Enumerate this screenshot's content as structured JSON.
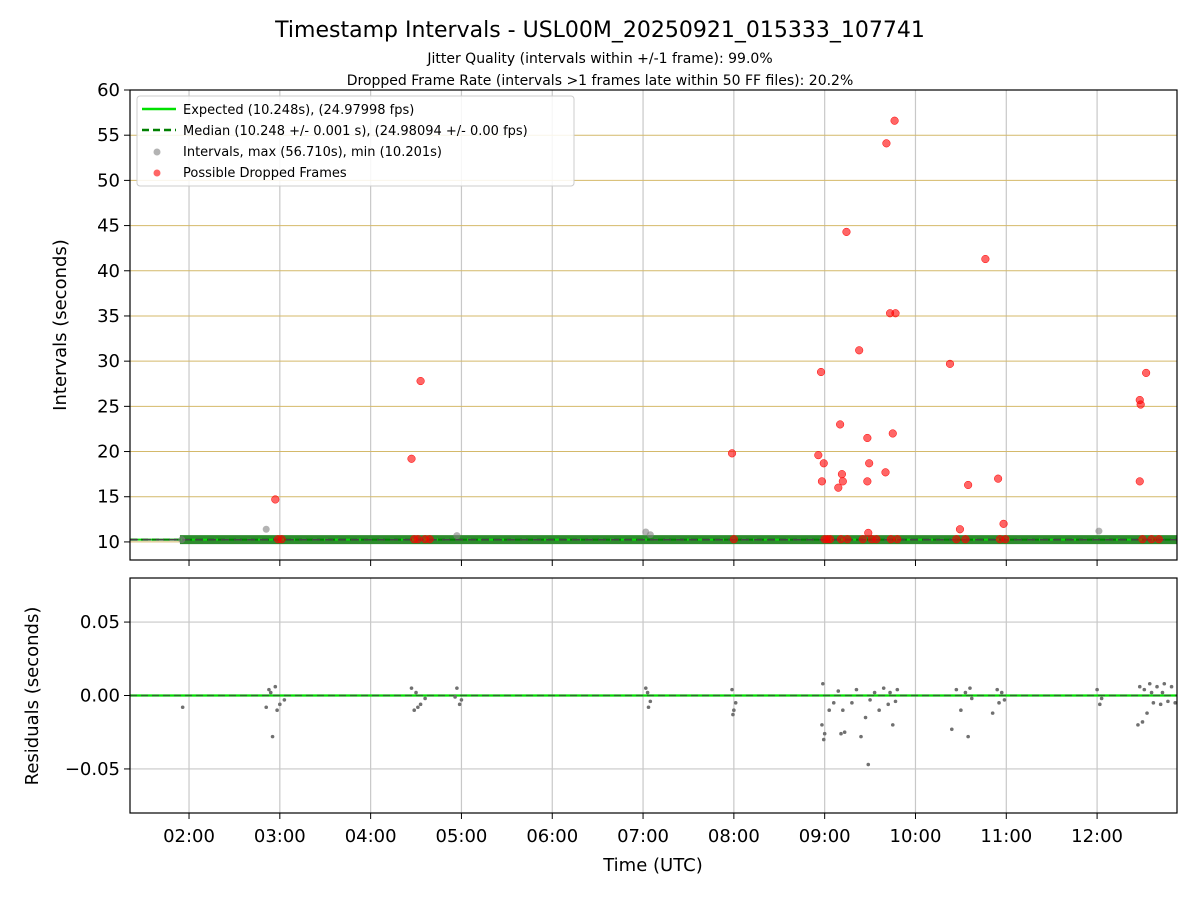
{
  "figure": {
    "title": "Timestamp Intervals - USL00M_20250921_015333_107741",
    "subtitle_1": "Jitter Quality (intervals within +/-1 frame): 99.0%",
    "subtitle_2": "Dropped Frame Rate (intervals >1 frames late within 50 FF files): 20.2%"
  },
  "colors": {
    "expected": "#00e000",
    "median": "#008000",
    "interval": "#808080",
    "dropped": "#ff0000",
    "hgrid_top": "#d4b96a",
    "grid": "#c8c8c8"
  },
  "chart_data": [
    {
      "type": "scatter",
      "panel": "intervals",
      "ylabel": "Intervals (seconds)",
      "xlabel": "",
      "xlim_hours": [
        1.35,
        12.88
      ],
      "ylim": [
        8,
        60
      ],
      "yticks": [
        10,
        15,
        20,
        25,
        30,
        35,
        40,
        45,
        50,
        55,
        60
      ],
      "ytick_labels": [
        "10",
        "15",
        "20",
        "25",
        "30",
        "35",
        "40",
        "45",
        "50",
        "55",
        "60"
      ],
      "grid": true,
      "legend": {
        "position": "top-left",
        "entries": [
          {
            "label": "Expected (10.248s), (24.97998 fps)",
            "style": "solid-line",
            "color": "#00e000"
          },
          {
            "label": "Median (10.248 +/- 0.001 s), (24.98094 +/- 0.00 fps)",
            "style": "dashed-line",
            "color": "#008000"
          },
          {
            "label": "Intervals, max (56.710s), min (10.201s)",
            "style": "marker",
            "color": "#808080"
          },
          {
            "label": "Possible Dropped Frames",
            "style": "marker",
            "color": "#ff0000"
          }
        ]
      },
      "expected_line": 10.248,
      "median_line": 10.248,
      "baseline_band": {
        "x_start": 1.9,
        "x_end": 12.88,
        "value": 10.248
      },
      "series": [
        {
          "name": "Intervals",
          "points": [
            [
              2.85,
              11.4
            ],
            [
              4.95,
              10.7
            ],
            [
              7.03,
              11.1
            ],
            [
              7.08,
              10.8
            ],
            [
              12.02,
              11.2
            ],
            [
              1.92,
              10.25
            ]
          ]
        },
        {
          "name": "Possible Dropped Frames",
          "points": [
            [
              2.95,
              14.7
            ],
            [
              2.98,
              10.3
            ],
            [
              3.02,
              10.3
            ],
            [
              4.45,
              19.2
            ],
            [
              4.55,
              27.8
            ],
            [
              4.6,
              10.3
            ],
            [
              4.65,
              10.3
            ],
            [
              4.48,
              10.3
            ],
            [
              4.52,
              10.3
            ],
            [
              7.98,
              19.8
            ],
            [
              8.0,
              10.3
            ],
            [
              8.93,
              19.6
            ],
            [
              8.96,
              28.8
            ],
            [
              8.97,
              16.7
            ],
            [
              8.99,
              18.7
            ],
            [
              9.0,
              10.3
            ],
            [
              9.03,
              10.3
            ],
            [
              9.06,
              10.3
            ],
            [
              9.15,
              16.0
            ],
            [
              9.17,
              23.0
            ],
            [
              9.19,
              17.5
            ],
            [
              9.2,
              16.7
            ],
            [
              9.24,
              44.3
            ],
            [
              9.18,
              10.3
            ],
            [
              9.25,
              10.3
            ],
            [
              9.38,
              31.2
            ],
            [
              9.47,
              21.5
            ],
            [
              9.47,
              16.7
            ],
            [
              9.49,
              18.7
            ],
            [
              9.48,
              11.0
            ],
            [
              9.42,
              10.3
            ],
            [
              9.52,
              10.3
            ],
            [
              9.57,
              10.3
            ],
            [
              9.67,
              17.7
            ],
            [
              9.68,
              54.1
            ],
            [
              9.72,
              35.3
            ],
            [
              9.75,
              22.0
            ],
            [
              9.77,
              56.6
            ],
            [
              9.78,
              35.3
            ],
            [
              9.73,
              10.3
            ],
            [
              9.8,
              10.3
            ],
            [
              10.38,
              29.7
            ],
            [
              10.49,
              11.4
            ],
            [
              10.58,
              16.3
            ],
            [
              10.45,
              10.3
            ],
            [
              10.55,
              10.3
            ],
            [
              10.77,
              41.3
            ],
            [
              10.91,
              17.0
            ],
            [
              10.97,
              12.0
            ],
            [
              10.93,
              10.3
            ],
            [
              10.99,
              10.3
            ],
            [
              12.47,
              16.7
            ],
            [
              12.47,
              25.7
            ],
            [
              12.48,
              25.2
            ],
            [
              12.54,
              28.7
            ],
            [
              12.5,
              10.3
            ],
            [
              12.6,
              10.3
            ],
            [
              12.68,
              10.3
            ]
          ]
        }
      ]
    },
    {
      "type": "scatter",
      "panel": "residuals",
      "ylabel": "Residuals (seconds)",
      "xlabel": "Time (UTC)",
      "xlim_hours": [
        1.35,
        12.88
      ],
      "ylim": [
        -0.08,
        0.08
      ],
      "yticks": [
        0.05,
        0.0,
        -0.05
      ],
      "ytick_labels": [
        "0.05",
        "0.00",
        "−0.05"
      ],
      "xticks_hours": [
        2,
        3,
        4,
        5,
        6,
        7,
        8,
        9,
        10,
        11,
        12
      ],
      "xtick_labels": [
        "02:00",
        "03:00",
        "04:00",
        "05:00",
        "06:00",
        "07:00",
        "08:00",
        "09:00",
        "10:00",
        "11:00",
        "12:00"
      ],
      "grid": true,
      "zero_line": 0.0,
      "series": [
        {
          "name": "Residuals",
          "points": [
            [
              1.93,
              -0.008
            ],
            [
              2.92,
              -0.028
            ],
            [
              2.85,
              -0.008
            ],
            [
              2.88,
              0.004
            ],
            [
              2.95,
              0.006
            ],
            [
              3.0,
              -0.006
            ],
            [
              3.05,
              -0.003
            ],
            [
              2.9,
              0.002
            ],
            [
              2.97,
              -0.01
            ],
            [
              4.45,
              0.005
            ],
            [
              4.48,
              -0.01
            ],
            [
              4.55,
              -0.006
            ],
            [
              4.6,
              -0.002
            ],
            [
              4.5,
              0.002
            ],
            [
              4.52,
              -0.008
            ],
            [
              4.95,
              0.005
            ],
            [
              4.98,
              -0.006
            ],
            [
              5.0,
              -0.003
            ],
            [
              4.93,
              -0.001
            ],
            [
              7.03,
              0.005
            ],
            [
              7.06,
              -0.008
            ],
            [
              7.08,
              -0.004
            ],
            [
              7.05,
              0.002
            ],
            [
              7.98,
              0.004
            ],
            [
              8.0,
              -0.01
            ],
            [
              8.02,
              -0.005
            ],
            [
              7.99,
              -0.013
            ],
            [
              8.98,
              0.008
            ],
            [
              8.99,
              -0.03
            ],
            [
              9.0,
              -0.026
            ],
            [
              8.97,
              -0.02
            ],
            [
              9.05,
              -0.01
            ],
            [
              9.1,
              -0.005
            ],
            [
              9.15,
              0.003
            ],
            [
              9.18,
              -0.026
            ],
            [
              9.22,
              -0.025
            ],
            [
              9.2,
              -0.01
            ],
            [
              9.3,
              -0.005
            ],
            [
              9.35,
              0.004
            ],
            [
              9.4,
              -0.028
            ],
            [
              9.45,
              -0.015
            ],
            [
              9.48,
              -0.047
            ],
            [
              9.5,
              -0.003
            ],
            [
              9.55,
              0.002
            ],
            [
              9.6,
              -0.01
            ],
            [
              9.65,
              0.005
            ],
            [
              9.7,
              -0.006
            ],
            [
              9.75,
              -0.02
            ],
            [
              9.78,
              -0.004
            ],
            [
              9.8,
              0.004
            ],
            [
              9.72,
              0.002
            ],
            [
              10.4,
              -0.023
            ],
            [
              10.45,
              0.004
            ],
            [
              10.5,
              -0.01
            ],
            [
              10.55,
              0.002
            ],
            [
              10.58,
              -0.028
            ],
            [
              10.6,
              0.005
            ],
            [
              10.62,
              -0.002
            ],
            [
              10.85,
              -0.012
            ],
            [
              10.9,
              0.004
            ],
            [
              10.92,
              -0.005
            ],
            [
              10.95,
              0.002
            ],
            [
              10.98,
              -0.003
            ],
            [
              12.0,
              0.004
            ],
            [
              12.03,
              -0.006
            ],
            [
              12.05,
              -0.002
            ],
            [
              12.45,
              -0.02
            ],
            [
              12.5,
              -0.018
            ],
            [
              12.55,
              -0.012
            ],
            [
              12.47,
              0.006
            ],
            [
              12.52,
              0.004
            ],
            [
              12.58,
              0.008
            ],
            [
              12.62,
              -0.005
            ],
            [
              12.66,
              0.006
            ],
            [
              12.7,
              -0.006
            ],
            [
              12.74,
              0.008
            ],
            [
              12.78,
              -0.004
            ],
            [
              12.82,
              0.006
            ],
            [
              12.86,
              -0.005
            ],
            [
              12.6,
              0.002
            ],
            [
              12.72,
              0.002
            ]
          ]
        }
      ]
    }
  ]
}
